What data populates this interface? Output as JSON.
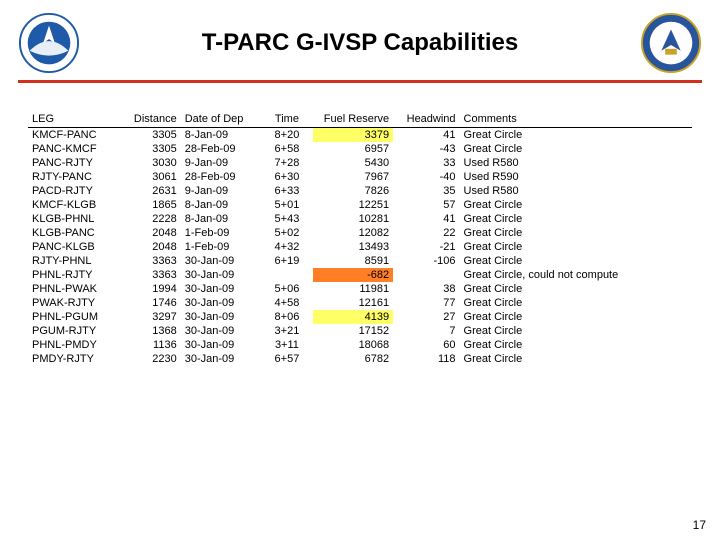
{
  "colors": {
    "divider": "#d22e1e",
    "highlight_yellow": "#ffff66",
    "highlight_orange": "#ff7f27",
    "noaa_blue": "#1e5aa8",
    "doc_blue": "#28549c",
    "doc_gold": "#c9a227"
  },
  "title": "T-PARC G-IVSP Capabilities",
  "page_number": "17",
  "table": {
    "columns": [
      "LEG",
      "Distance",
      "Date of Dep",
      "Time",
      "Fuel Reserve",
      "Headwind",
      "Comments"
    ],
    "rows": [
      {
        "leg": "KMCF-PANC",
        "dist": "3305",
        "date": "8-Jan-09",
        "time": "8+20",
        "fuel": "3379",
        "fuel_hl": "yellow",
        "hw": "41",
        "comm": "Great Circle"
      },
      {
        "leg": "PANC-KMCF",
        "dist": "3305",
        "date": "28-Feb-09",
        "time": "6+58",
        "fuel": "6957",
        "hw": "-43",
        "comm": "Great Circle"
      },
      {
        "leg": "PANC-RJTY",
        "dist": "3030",
        "date": "9-Jan-09",
        "time": "7+28",
        "fuel": "5430",
        "hw": "33",
        "comm": "Used R580"
      },
      {
        "leg": "RJTY-PANC",
        "dist": "3061",
        "date": "28-Feb-09",
        "time": "6+30",
        "fuel": "7967",
        "hw": "-40",
        "comm": "Used R590"
      },
      {
        "leg": "PACD-RJTY",
        "dist": "2631",
        "date": "9-Jan-09",
        "time": "6+33",
        "fuel": "7826",
        "hw": "35",
        "comm": "Used R580"
      },
      {
        "leg": "KMCF-KLGB",
        "dist": "1865",
        "date": "8-Jan-09",
        "time": "5+01",
        "fuel": "12251",
        "hw": "57",
        "comm": "Great Circle"
      },
      {
        "leg": "KLGB-PHNL",
        "dist": "2228",
        "date": "8-Jan-09",
        "time": "5+43",
        "fuel": "10281",
        "hw": "41",
        "comm": "Great Circle"
      },
      {
        "leg": "KLGB-PANC",
        "dist": "2048",
        "date": "1-Feb-09",
        "time": "5+02",
        "fuel": "12082",
        "hw": "22",
        "comm": "Great Circle"
      },
      {
        "leg": "PANC-KLGB",
        "dist": "2048",
        "date": "1-Feb-09",
        "time": "4+32",
        "fuel": "13493",
        "hw": "-21",
        "comm": "Great Circle"
      },
      {
        "leg": "RJTY-PHNL",
        "dist": "3363",
        "date": "30-Jan-09",
        "time": "6+19",
        "fuel": "8591",
        "hw": "-106",
        "comm": "Great Circle"
      },
      {
        "leg": "PHNL-RJTY",
        "dist": "3363",
        "date": "30-Jan-09",
        "time": "",
        "fuel": "-682",
        "fuel_hl": "orange",
        "hw": "",
        "comm": "Great Circle, could not compute"
      },
      {
        "leg": "PHNL-PWAK",
        "dist": "1994",
        "date": "30-Jan-09",
        "time": "5+06",
        "fuel": "11981",
        "hw": "38",
        "comm": "Great Circle"
      },
      {
        "leg": "PWAK-RJTY",
        "dist": "1746",
        "date": "30-Jan-09",
        "time": "4+58",
        "fuel": "12161",
        "hw": "77",
        "comm": "Great Circle"
      },
      {
        "leg": "PHNL-PGUM",
        "dist": "3297",
        "date": "30-Jan-09",
        "time": "8+06",
        "fuel": "4139",
        "fuel_hl": "yellow",
        "hw": "27",
        "comm": "Great Circle"
      },
      {
        "leg": "PGUM-RJTY",
        "dist": "1368",
        "date": "30-Jan-09",
        "time": "3+21",
        "fuel": "17152",
        "hw": "7",
        "comm": "Great Circle"
      },
      {
        "leg": "PHNL-PMDY",
        "dist": "1136",
        "date": "30-Jan-09",
        "time": "3+11",
        "fuel": "18068",
        "hw": "60",
        "comm": "Great Circle"
      },
      {
        "leg": "PMDY-RJTY",
        "dist": "2230",
        "date": "30-Jan-09",
        "time": "6+57",
        "fuel": "6782",
        "hw": "118",
        "comm": "Great Circle"
      }
    ]
  }
}
